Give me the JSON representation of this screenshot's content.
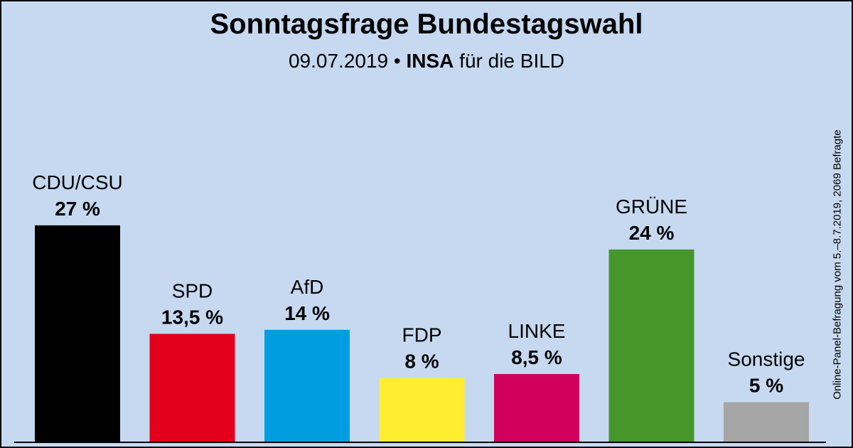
{
  "header": {
    "title": "Sonntagsfrage Bundestagswahl",
    "date": "09.07.2019",
    "bullet": "•",
    "institute": "INSA",
    "client": "für die BILD"
  },
  "side_note": "Online-Panel-Befragung vom 5.–8.7.2019, 2069 Befragte",
  "chart_data": {
    "type": "bar",
    "title": "Sonntagsfrage Bundestagswahl",
    "subtitle": "09.07.2019 • INSA für die BILD",
    "categories": [
      "CDU/CSU",
      "SPD",
      "AfD",
      "FDP",
      "LINKE",
      "GRÜNE",
      "Sonstige"
    ],
    "values": [
      27,
      13.5,
      14,
      8,
      8.5,
      24,
      5
    ],
    "value_labels": [
      "27 %",
      "13,5 %",
      "14 %",
      "8 %",
      "8,5 %",
      "24 %",
      "5 %"
    ],
    "colors": [
      "#000000",
      "#e3001b",
      "#009ee0",
      "#ffed30",
      "#d1005f",
      "#46962b",
      "#a6a6a6"
    ],
    "unit": "%",
    "ylim": [
      0,
      30
    ],
    "grid": false,
    "legend": "none"
  }
}
